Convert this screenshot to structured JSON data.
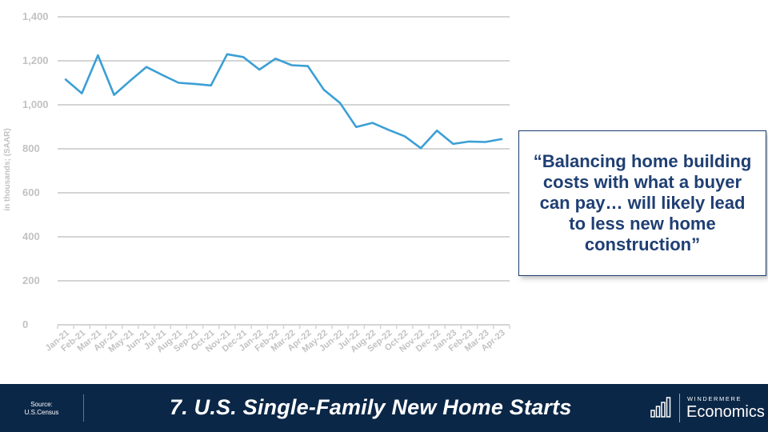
{
  "chart_data": {
    "type": "line",
    "title": "",
    "xlabel": "",
    "ylabel": "in thousands; (SAAR)",
    "ylim": [
      0,
      1400
    ],
    "yticks": [
      0,
      200,
      400,
      600,
      800,
      1000,
      1200,
      1400
    ],
    "ytick_labels": [
      "0",
      "200",
      "400",
      "600",
      "800",
      "1,000",
      "1,200",
      "1,400"
    ],
    "grid": true,
    "legend": "none",
    "categories": [
      "Jan-21",
      "Feb-21",
      "Mar-21",
      "Apr-21",
      "May-21",
      "Jun-21",
      "Jul-21",
      "Aug-21",
      "Sep-21",
      "Oct-21",
      "Nov-21",
      "Dec-21",
      "Jan-22",
      "Feb-22",
      "Mar-22",
      "Apr-22",
      "May-22",
      "Jun-22",
      "Jul-22",
      "Aug-22",
      "Sep-22",
      "Oct-22",
      "Nov-22",
      "Dec-22",
      "Jan-23",
      "Feb-23",
      "Mar-23",
      "Apr-23"
    ],
    "series": [
      {
        "color": "#3b9fd6",
        "values": [
          1115,
          1052,
          1225,
          1045,
          1110,
          1172,
          1135,
          1100,
          1095,
          1088,
          1230,
          1217,
          1160,
          1210,
          1180,
          1176,
          1068,
          1008,
          899,
          918,
          886,
          857,
          803,
          883,
          822,
          833,
          831,
          844
        ]
      }
    ]
  },
  "quote": {
    "text": "“Balancing home building costs with what a buyer can pay… will likely lead to less new home construction”"
  },
  "footer": {
    "source_line1": "Source:",
    "source_line2": "U.S.Census",
    "title": "7. U.S. Single-Family New Home Starts",
    "logo_top": "WINDERMERE",
    "logo_bottom": "Economics"
  },
  "colors": {
    "footer_bg": "#0b2747",
    "quote_text": "#1f3f73",
    "line": "#3b9fd6",
    "axis_text": "#c2c2c2"
  },
  "icons": [
    "bar-chart-logo-icon"
  ]
}
